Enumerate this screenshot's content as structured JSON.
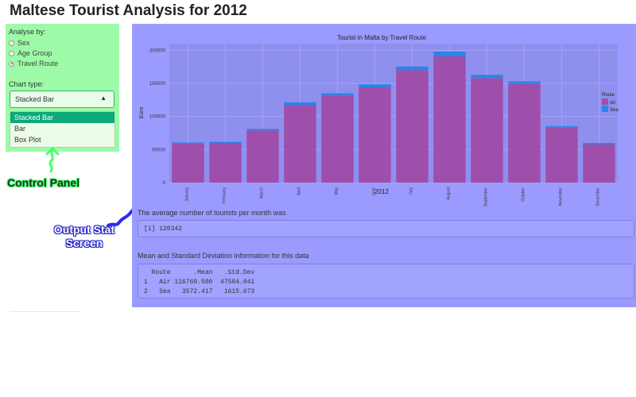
{
  "page": {
    "title": "Maltese Tourist Analysis for 2012"
  },
  "control_panel": {
    "analyse_label": "Analyse by:",
    "radio_options": [
      {
        "label": "Sex",
        "checked": false
      },
      {
        "label": "Age Group",
        "checked": false
      },
      {
        "label": "Travel Route",
        "checked": true
      }
    ],
    "chart_type_label": "Chart type:",
    "select_value": "Stacked Bar",
    "dropdown_options": [
      {
        "label": "Stacked Bar",
        "selected": true
      },
      {
        "label": "Bar",
        "selected": false
      },
      {
        "label": "Box Plot",
        "selected": false
      }
    ]
  },
  "annotations": {
    "control_panel": "Control Panel",
    "output_line1": "Output Stat",
    "output_line2": "Screen"
  },
  "output": {
    "avg_label": "The average number of tourists per month was",
    "avg_value": "[1] 120342",
    "stats_label": "Mean and Standard Deviation information for this data",
    "stats_lines": [
      "  Route      .Mean   .Std.Dev",
      "1   Air 116769.500  47504.041",
      "2   Sea   3572.417   1615.673"
    ]
  },
  "colors": {
    "air": "#9e4fab",
    "sea": "#2a85e6",
    "control_bg": "#9dfaa8",
    "output_bg": "#9b9bff"
  },
  "chart_data": {
    "type": "bar",
    "stacked": true,
    "title": "Tourist in Malta by Travel Route",
    "xlabel": "2012",
    "ylabel": "Euro",
    "categories": [
      "January",
      "February",
      "March",
      "April",
      "May",
      "June",
      "July",
      "August",
      "September",
      "October",
      "November",
      "December"
    ],
    "series": [
      {
        "name": "Air",
        "values": [
          59000,
          60000,
          79000,
          117000,
          131000,
          144000,
          170000,
          191000,
          158000,
          149000,
          83000,
          58000
        ]
      },
      {
        "name": "Sea",
        "values": [
          1700,
          1700,
          2200,
          4300,
          4000,
          4500,
          5500,
          7000,
          5000,
          4000,
          2300,
          2000
        ]
      }
    ],
    "yticks": [
      0,
      50000,
      100000,
      150000,
      200000
    ],
    "ylim": [
      0,
      210000
    ],
    "legend_title": "Route",
    "legend_position": "right",
    "grid": true
  }
}
